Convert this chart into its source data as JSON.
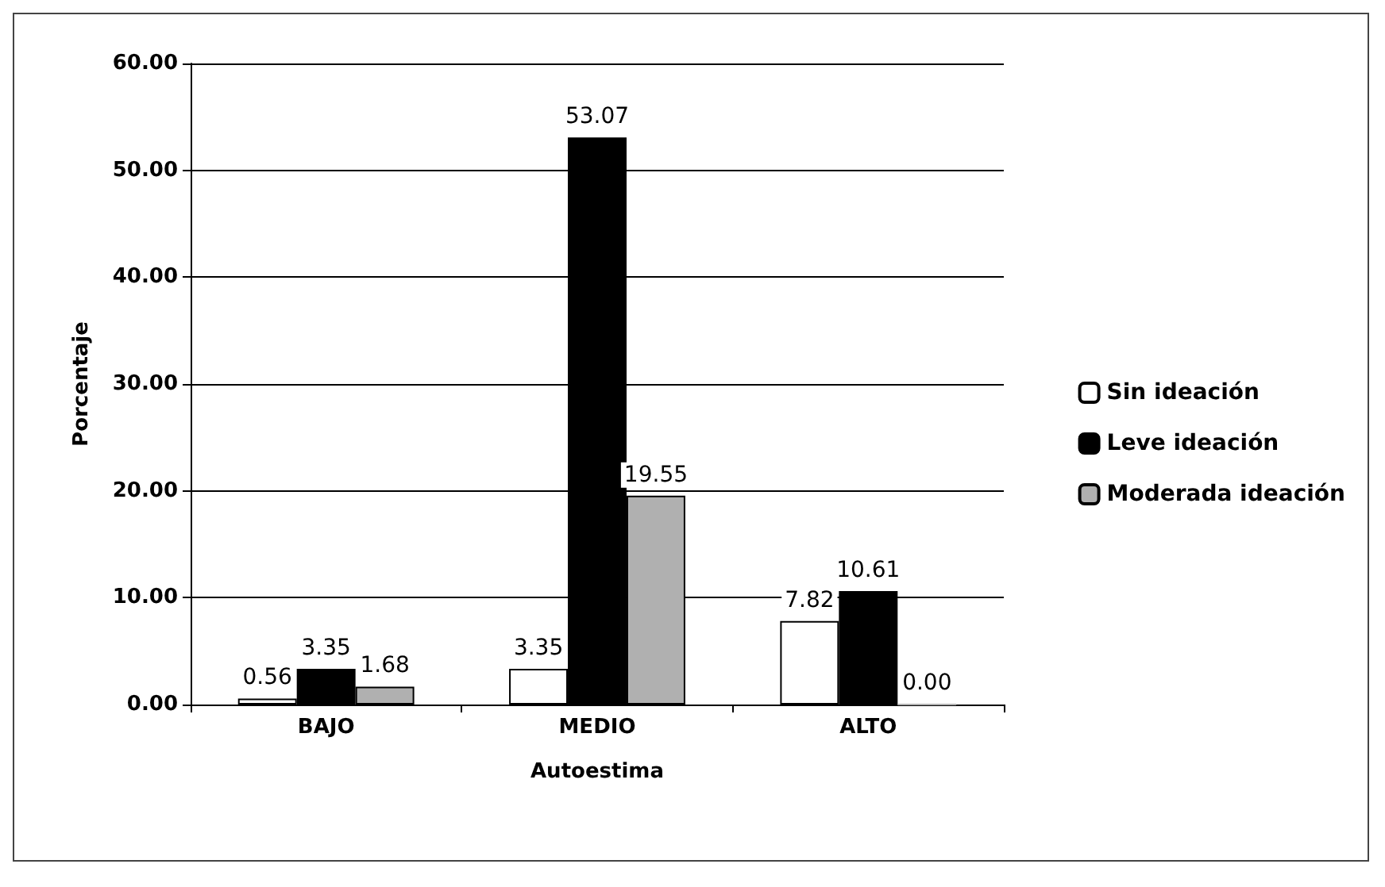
{
  "chart_data": {
    "type": "bar",
    "xlabel": "Autoestima",
    "ylabel": "Porcentaje",
    "categories": [
      "BAJO",
      "MEDIO",
      "ALTO"
    ],
    "series": [
      {
        "name": "Sin ideación",
        "color": "#ffffff",
        "values": [
          0.56,
          3.35,
          7.82
        ],
        "value_labels": [
          "0.56",
          "3.35",
          "7.82"
        ]
      },
      {
        "name": "Leve ideación",
        "color": "#000000",
        "values": [
          3.35,
          53.07,
          10.61
        ],
        "value_labels": [
          "3.35",
          "53.07",
          "10.61"
        ]
      },
      {
        "name": "Moderada ideación",
        "color": "#b0b0b0",
        "values": [
          1.68,
          19.55,
          0
        ],
        "value_labels": [
          "1.68",
          "19.55",
          "0.00"
        ]
      }
    ],
    "ylim": [
      0,
      60
    ],
    "yticks": [
      {
        "value": 0,
        "label": "0.00"
      },
      {
        "value": 10,
        "label": "10.00"
      },
      {
        "value": 20,
        "label": "20.00"
      },
      {
        "value": 30,
        "label": "30.00"
      },
      {
        "value": 40,
        "label": "40.00"
      },
      {
        "value": 50,
        "label": "50.00"
      },
      {
        "value": 60,
        "label": "60.00"
      }
    ],
    "grid": "y",
    "legend": "right"
  }
}
